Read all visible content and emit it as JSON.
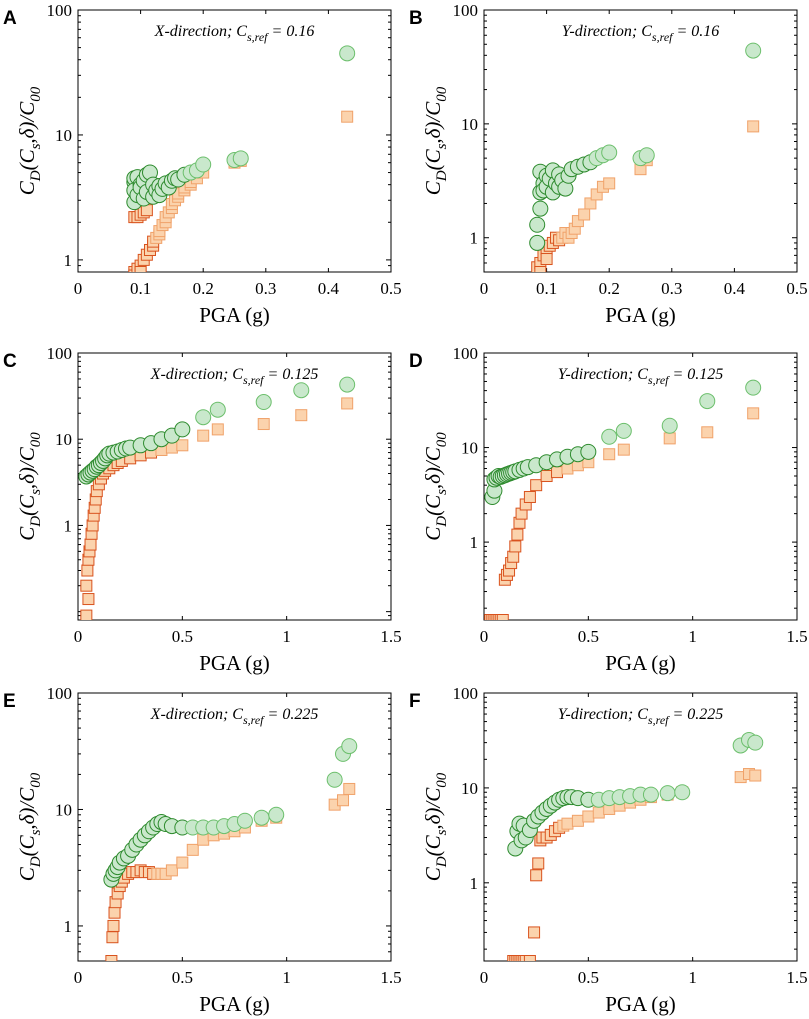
{
  "colors": {
    "circle_fill": "#c9e8cc",
    "circle_stroke": "#6cbf6c",
    "circle_dense_stroke": "#2e8b2e",
    "square_fill": "#fbd3ad",
    "square_stroke": "#f0a26a",
    "square_dense_stroke": "#d9531e",
    "axis": "#000000"
  },
  "chart_data": [
    {
      "panel": "A",
      "type": "scatter",
      "title": "X-direction; Cs,ref = 0.16",
      "annotation": {
        "prefix": "X-direction; C",
        "sub": "s,ref",
        "suffix": " = 0.16"
      },
      "xlabel": "PGA (g)",
      "ylabel": "C_D(C_s,δ)/C_00",
      "xlim": [
        0,
        0.5
      ],
      "ylim": [
        0.8,
        100
      ],
      "yscale": "log",
      "xticks": [
        0,
        0.1,
        0.2,
        0.3,
        0.4,
        0.5
      ],
      "xticklabels": [
        "0",
        "0.1",
        "0.2",
        "0.3",
        "0.4",
        "0.5"
      ],
      "yticks": [
        1,
        10,
        100
      ],
      "yticklabels": [
        "1",
        "10",
        "100"
      ],
      "series": [
        {
          "name": "circles",
          "marker": "circle",
          "x": [
            0.09,
            0.09,
            0.09,
            0.09,
            0.095,
            0.095,
            0.1,
            0.1,
            0.105,
            0.105,
            0.11,
            0.11,
            0.115,
            0.12,
            0.12,
            0.125,
            0.13,
            0.13,
            0.135,
            0.14,
            0.145,
            0.15,
            0.155,
            0.16,
            0.17,
            0.18,
            0.19,
            0.2,
            0.25,
            0.26,
            0.43
          ],
          "y": [
            4.2,
            4.5,
            3.6,
            2.9,
            4.6,
            3.3,
            4.0,
            3.8,
            4.3,
            3.1,
            4.8,
            3.5,
            5.0,
            4.0,
            3.2,
            3.6,
            3.9,
            3.3,
            3.7,
            4.1,
            3.8,
            4.3,
            4.5,
            4.4,
            4.8,
            5.0,
            5.2,
            5.8,
            6.3,
            6.5,
            45
          ]
        },
        {
          "name": "squares",
          "marker": "square",
          "x": [
            0.09,
            0.09,
            0.09,
            0.095,
            0.095,
            0.1,
            0.1,
            0.1,
            0.105,
            0.105,
            0.11,
            0.11,
            0.115,
            0.12,
            0.12,
            0.125,
            0.13,
            0.13,
            0.135,
            0.14,
            0.14,
            0.145,
            0.15,
            0.15,
            0.155,
            0.16,
            0.16,
            0.17,
            0.17,
            0.18,
            0.18,
            0.19,
            0.2,
            0.25,
            0.26,
            0.43
          ],
          "y": [
            2.2,
            0.8,
            0.75,
            2.2,
            0.85,
            2.3,
            0.9,
            0.8,
            2.4,
            1.0,
            2.5,
            1.1,
            1.2,
            1.3,
            1.4,
            1.5,
            1.6,
            1.7,
            1.9,
            2.0,
            2.2,
            2.4,
            2.6,
            2.8,
            3.0,
            3.2,
            3.4,
            3.6,
            3.8,
            4.0,
            4.2,
            4.5,
            5.0,
            6.0,
            6.2,
            14
          ]
        }
      ]
    },
    {
      "panel": "B",
      "type": "scatter",
      "title": "Y-direction; Cs,ref = 0.16",
      "annotation": {
        "prefix": "Y-direction; C",
        "sub": "s,ref",
        "suffix": " = 0.16"
      },
      "xlabel": "PGA (g)",
      "ylabel": "C_D(C_s,δ)/C_00",
      "xlim": [
        0,
        0.5
      ],
      "ylim": [
        0.5,
        100
      ],
      "yscale": "log",
      "xticks": [
        0,
        0.1,
        0.2,
        0.3,
        0.4,
        0.5
      ],
      "xticklabels": [
        "0",
        "0.1",
        "0.2",
        "0.3",
        "0.4",
        "0.5"
      ],
      "yticks": [
        1,
        10,
        100
      ],
      "yticklabels": [
        "1",
        "10",
        "100"
      ],
      "series": [
        {
          "name": "circles",
          "marker": "circle",
          "x": [
            0.085,
            0.085,
            0.09,
            0.09,
            0.09,
            0.095,
            0.095,
            0.1,
            0.1,
            0.105,
            0.11,
            0.11,
            0.115,
            0.12,
            0.12,
            0.125,
            0.13,
            0.135,
            0.14,
            0.15,
            0.16,
            0.17,
            0.18,
            0.19,
            0.2,
            0.25,
            0.26,
            0.43
          ],
          "y": [
            0.9,
            1.3,
            2.5,
            3.8,
            1.8,
            3.0,
            2.6,
            3.5,
            2.8,
            3.3,
            2.5,
            3.9,
            3.0,
            2.8,
            3.6,
            3.2,
            2.7,
            3.5,
            4.0,
            4.2,
            4.4,
            4.6,
            5.0,
            5.3,
            5.6,
            5.0,
            5.3,
            44
          ]
        },
        {
          "name": "squares",
          "marker": "square",
          "x": [
            0.085,
            0.09,
            0.09,
            0.095,
            0.1,
            0.1,
            0.105,
            0.11,
            0.115,
            0.12,
            0.125,
            0.13,
            0.135,
            0.14,
            0.145,
            0.15,
            0.16,
            0.17,
            0.18,
            0.19,
            0.2,
            0.25,
            0.26,
            0.43
          ],
          "y": [
            0.55,
            0.6,
            0.5,
            0.7,
            0.8,
            0.65,
            0.85,
            0.9,
            1.0,
            0.95,
            1.0,
            1.1,
            1.0,
            1.1,
            1.2,
            1.4,
            1.6,
            2.0,
            2.4,
            2.8,
            3.0,
            4.0,
            4.8,
            9.5
          ]
        }
      ]
    },
    {
      "panel": "C",
      "type": "scatter",
      "title": "X-direction; Cs,ref = 0.125",
      "annotation": {
        "prefix": "X-direction; C",
        "sub": "s,ref",
        "suffix": " = 0.125"
      },
      "xlabel": "PGA (g)",
      "ylabel": "C_D(C_s,δ)/C_00",
      "xlim": [
        0,
        1.5
      ],
      "ylim": [
        0.08,
        100
      ],
      "yscale": "log",
      "xticks": [
        0,
        0.5,
        1,
        1.5
      ],
      "xticklabels": [
        "0",
        "0.5",
        "1",
        "1.5"
      ],
      "yticks": [
        1,
        10,
        100
      ],
      "yticklabels": [
        "1",
        "10",
        "100"
      ],
      "series": [
        {
          "name": "circles",
          "marker": "circle",
          "x": [
            0.04,
            0.05,
            0.06,
            0.07,
            0.08,
            0.09,
            0.1,
            0.11,
            0.12,
            0.13,
            0.14,
            0.15,
            0.17,
            0.19,
            0.21,
            0.23,
            0.25,
            0.3,
            0.35,
            0.4,
            0.45,
            0.5,
            0.6,
            0.67,
            0.89,
            1.07,
            1.29
          ],
          "y": [
            3.7,
            3.9,
            4.1,
            4.3,
            4.5,
            4.8,
            5.0,
            5.3,
            5.6,
            6.0,
            6.5,
            6.8,
            7.0,
            7.2,
            7.5,
            7.8,
            8.0,
            8.5,
            9.0,
            10,
            11,
            13,
            18,
            22,
            27,
            37,
            43
          ]
        },
        {
          "name": "squares",
          "marker": "square",
          "x": [
            0.04,
            0.04,
            0.045,
            0.05,
            0.05,
            0.055,
            0.06,
            0.065,
            0.07,
            0.075,
            0.08,
            0.085,
            0.09,
            0.1,
            0.11,
            0.12,
            0.13,
            0.15,
            0.17,
            0.19,
            0.21,
            0.25,
            0.3,
            0.35,
            0.4,
            0.45,
            0.5,
            0.6,
            0.67,
            0.89,
            1.07,
            1.29
          ],
          "y": [
            0.09,
            0.2,
            0.3,
            0.4,
            0.14,
            0.5,
            0.6,
            0.8,
            1.0,
            1.3,
            1.6,
            2.0,
            2.5,
            3.0,
            3.5,
            4.0,
            4.3,
            4.6,
            5.0,
            5.3,
            5.6,
            6.0,
            6.5,
            7.0,
            7.5,
            8.0,
            8.5,
            11,
            13,
            15,
            19,
            26
          ]
        }
      ]
    },
    {
      "panel": "D",
      "type": "scatter",
      "title": "Y-direction; Cs,ref = 0.125",
      "annotation": {
        "prefix": "Y-direction; C",
        "sub": "s,ref",
        "suffix": " = 0.125"
      },
      "xlabel": "PGA (g)",
      "ylabel": "C_D(C_s,δ)/C_00",
      "xlim": [
        0,
        1.5
      ],
      "ylim": [
        0.15,
        100
      ],
      "yscale": "log",
      "xticks": [
        0,
        0.5,
        1,
        1.5
      ],
      "xticklabels": [
        "0",
        "0.5",
        "1",
        "1.5"
      ],
      "yticks": [
        1,
        10,
        100
      ],
      "yticklabels": [
        "1",
        "10",
        "100"
      ],
      "series": [
        {
          "name": "circles",
          "marker": "circle",
          "x": [
            0.04,
            0.05,
            0.05,
            0.06,
            0.07,
            0.08,
            0.09,
            0.1,
            0.11,
            0.12,
            0.13,
            0.14,
            0.15,
            0.17,
            0.19,
            0.21,
            0.25,
            0.3,
            0.35,
            0.4,
            0.45,
            0.5,
            0.6,
            0.67,
            0.89,
            1.07,
            1.29
          ],
          "y": [
            3.0,
            3.5,
            4.6,
            4.8,
            5.0,
            4.9,
            5.0,
            5.1,
            5.2,
            5.3,
            5.4,
            5.5,
            5.6,
            5.8,
            6.0,
            6.2,
            6.5,
            7.0,
            7.5,
            8.0,
            8.5,
            9.0,
            13,
            15,
            17,
            31,
            43
          ]
        },
        {
          "name": "squares",
          "marker": "square",
          "x": [
            0.03,
            0.04,
            0.05,
            0.06,
            0.07,
            0.08,
            0.09,
            0.1,
            0.11,
            0.12,
            0.13,
            0.14,
            0.15,
            0.16,
            0.17,
            0.18,
            0.2,
            0.22,
            0.25,
            0.3,
            0.35,
            0.4,
            0.45,
            0.5,
            0.6,
            0.67,
            0.89,
            1.07,
            1.29
          ],
          "y": [
            0.15,
            0.15,
            0.15,
            0.15,
            0.15,
            0.15,
            0.15,
            0.4,
            0.45,
            0.5,
            0.6,
            0.7,
            0.9,
            1.2,
            1.6,
            2.0,
            2.5,
            3.0,
            4.0,
            5.0,
            5.5,
            6.0,
            6.5,
            7.0,
            8.5,
            9.5,
            12.5,
            14.5,
            23
          ]
        }
      ]
    },
    {
      "panel": "E",
      "type": "scatter",
      "title": "X-direction; Cs,ref = 0.225",
      "annotation": {
        "prefix": "X-direction; C",
        "sub": "s,ref",
        "suffix": " = 0.225"
      },
      "xlabel": "PGA (g)",
      "ylabel": "C_D(C_s,δ)/C_00",
      "xlim": [
        0,
        1.5
      ],
      "ylim": [
        0.5,
        100
      ],
      "yscale": "log",
      "xticks": [
        0,
        0.5,
        1,
        1.5
      ],
      "xticklabels": [
        "0",
        "0.5",
        "1",
        "1.5"
      ],
      "yticks": [
        1,
        10,
        100
      ],
      "yticklabels": [
        "1",
        "10",
        "100"
      ],
      "series": [
        {
          "name": "circles",
          "marker": "circle",
          "x": [
            0.16,
            0.17,
            0.18,
            0.19,
            0.2,
            0.22,
            0.24,
            0.26,
            0.28,
            0.3,
            0.32,
            0.34,
            0.36,
            0.38,
            0.4,
            0.42,
            0.45,
            0.5,
            0.55,
            0.6,
            0.65,
            0.7,
            0.75,
            0.8,
            0.88,
            0.95,
            1.23,
            1.27,
            1.3
          ],
          "y": [
            2.5,
            2.8,
            3.0,
            3.2,
            3.5,
            3.8,
            4.0,
            4.5,
            5.0,
            5.5,
            6.0,
            6.5,
            7.0,
            7.5,
            7.8,
            7.5,
            7.2,
            7.0,
            7.0,
            7.0,
            7.0,
            7.2,
            7.5,
            8.0,
            8.5,
            9.0,
            18,
            30,
            35
          ]
        },
        {
          "name": "squares",
          "marker": "square",
          "x": [
            0.16,
            0.165,
            0.17,
            0.175,
            0.18,
            0.19,
            0.2,
            0.21,
            0.22,
            0.24,
            0.26,
            0.28,
            0.3,
            0.32,
            0.34,
            0.36,
            0.38,
            0.4,
            0.42,
            0.45,
            0.5,
            0.55,
            0.6,
            0.65,
            0.7,
            0.75,
            0.8,
            0.88,
            0.95,
            1.23,
            1.27,
            1.3
          ],
          "y": [
            0.5,
            0.8,
            1.0,
            1.3,
            1.6,
            1.9,
            2.2,
            2.4,
            2.6,
            2.8,
            2.9,
            2.9,
            3.0,
            2.9,
            2.9,
            2.8,
            2.8,
            2.8,
            2.8,
            3.0,
            3.5,
            4.5,
            5.5,
            6.0,
            6.2,
            6.5,
            7.0,
            8.0,
            8.5,
            11,
            12,
            15
          ]
        }
      ]
    },
    {
      "panel": "F",
      "type": "scatter",
      "title": "Y-direction; Cs,ref = 0.225",
      "annotation": {
        "prefix": "Y-direction; C",
        "sub": "s,ref",
        "suffix": " = 0.225"
      },
      "xlabel": "PGA (g)",
      "ylabel": "C_D(C_s,δ)/C_00",
      "xlim": [
        0,
        1.5
      ],
      "ylim": [
        0.15,
        100
      ],
      "yscale": "log",
      "xticks": [
        0,
        0.5,
        1,
        1.5
      ],
      "xticklabels": [
        "0",
        "0.5",
        "1",
        "1.5"
      ],
      "yticks": [
        1,
        10,
        100
      ],
      "yticklabels": [
        "1",
        "10",
        "100"
      ],
      "series": [
        {
          "name": "circles",
          "marker": "circle",
          "x": [
            0.15,
            0.16,
            0.17,
            0.18,
            0.19,
            0.2,
            0.22,
            0.24,
            0.26,
            0.28,
            0.3,
            0.32,
            0.34,
            0.36,
            0.38,
            0.4,
            0.42,
            0.45,
            0.5,
            0.55,
            0.6,
            0.65,
            0.7,
            0.75,
            0.8,
            0.88,
            0.95,
            1.23,
            1.27,
            1.3
          ],
          "y": [
            2.3,
            3.5,
            4.2,
            2.8,
            4.0,
            3.0,
            3.6,
            4.5,
            5.0,
            5.5,
            6.0,
            6.5,
            7.0,
            7.5,
            7.8,
            8.0,
            8.0,
            7.8,
            7.5,
            7.5,
            7.8,
            8.0,
            8.2,
            8.5,
            8.5,
            8.8,
            9.0,
            28,
            32,
            30
          ]
        },
        {
          "name": "squares",
          "marker": "square",
          "x": [
            0.14,
            0.15,
            0.16,
            0.17,
            0.18,
            0.19,
            0.2,
            0.22,
            0.24,
            0.25,
            0.26,
            0.27,
            0.28,
            0.3,
            0.32,
            0.34,
            0.36,
            0.38,
            0.4,
            0.45,
            0.5,
            0.55,
            0.6,
            0.65,
            0.7,
            0.75,
            0.8,
            0.88,
            0.95,
            1.23,
            1.27,
            1.3
          ],
          "y": [
            0.15,
            0.15,
            0.15,
            0.15,
            0.15,
            0.15,
            0.15,
            0.15,
            0.3,
            1.2,
            1.6,
            2.8,
            3.0,
            3.0,
            3.2,
            3.5,
            3.8,
            4.0,
            4.2,
            4.5,
            5.0,
            5.5,
            6.0,
            6.5,
            7.0,
            7.5,
            8.0,
            8.5,
            9.0,
            13,
            14,
            13.5
          ]
        }
      ]
    }
  ]
}
